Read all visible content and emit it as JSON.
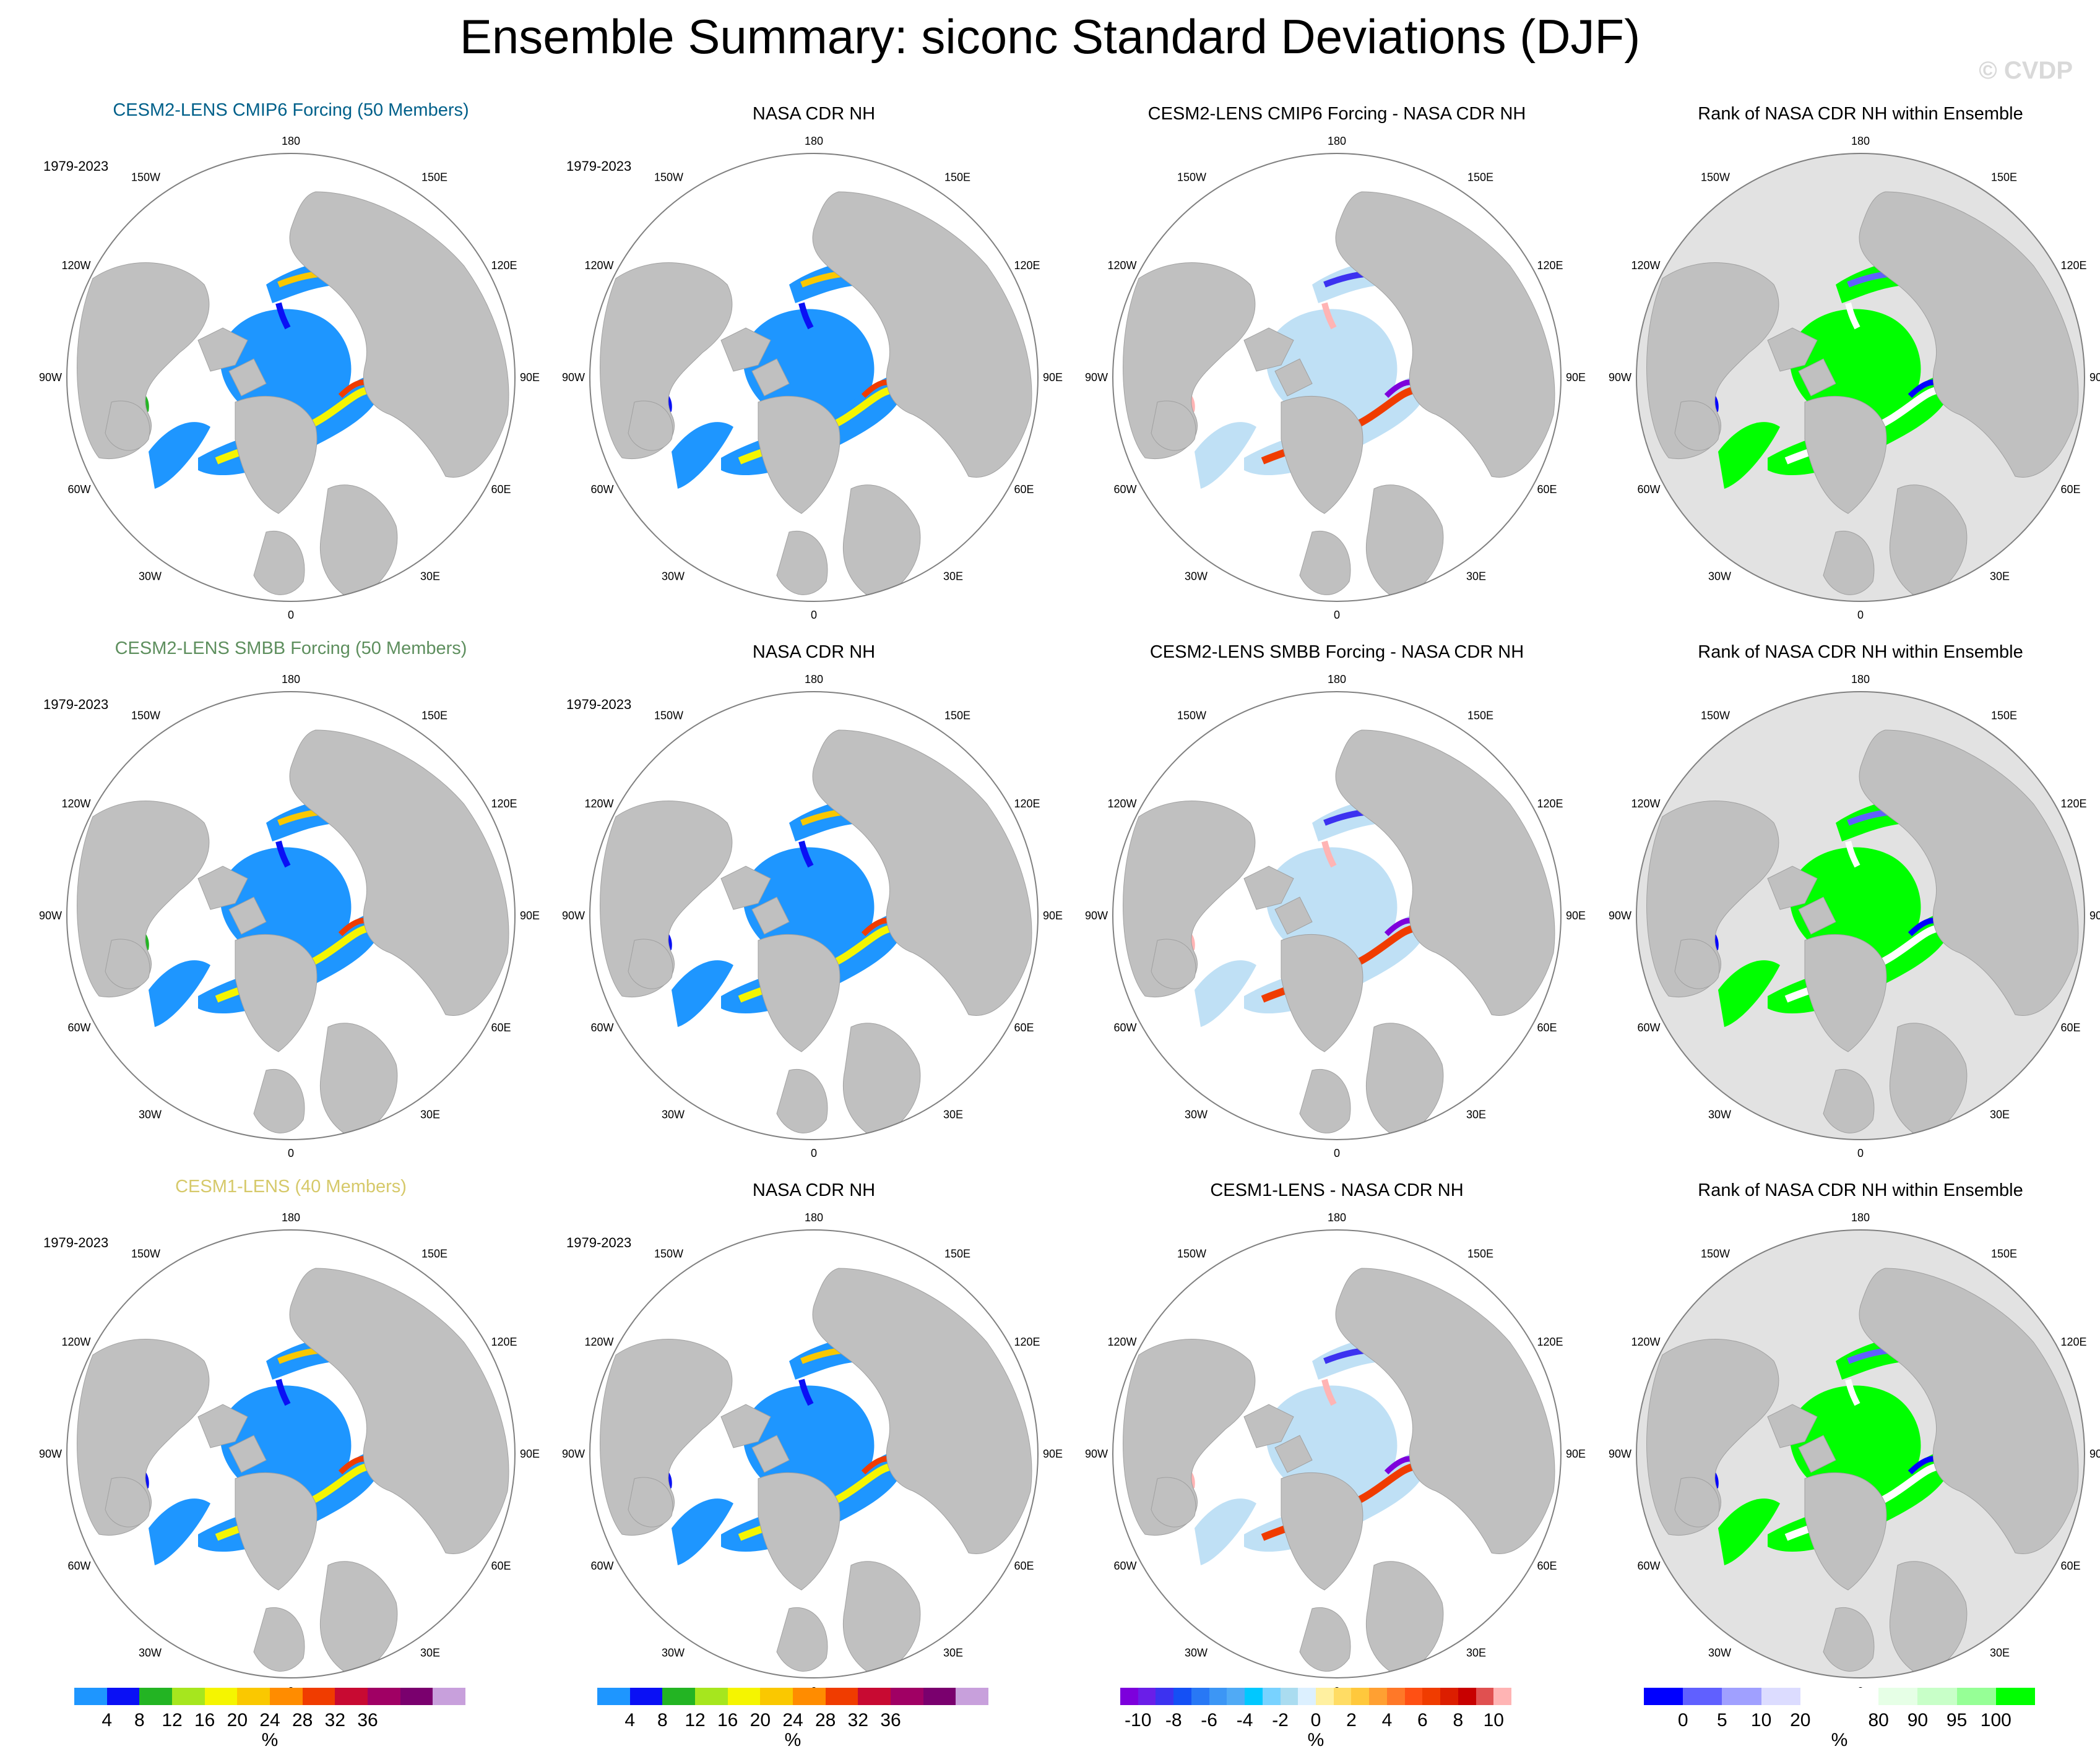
{
  "title": "Ensemble Summary: siconc Standard Deviations (DJF)",
  "watermark": "© CVDP",
  "period": "1979-2023",
  "lon_labels": {
    "top": "180",
    "bottom": "0",
    "l1": "150W",
    "l2": "120W",
    "l3": "90W",
    "l4": "60W",
    "l5": "30W",
    "r1": "150E",
    "r2": "120E",
    "r3": "90E",
    "r4": "60E",
    "r5": "30E"
  },
  "rows": [
    {
      "col1_title": "CESM2-LENS CMIP6 Forcing (50 Members)",
      "col1_title_color": "#00608a",
      "col2_title": "NASA CDR NH",
      "col3_title": "CESM2-LENS CMIP6 Forcing - NASA CDR NH",
      "col4_title": "Rank of NASA CDR NH within Ensemble"
    },
    {
      "col1_title": "CESM2-LENS SMBB Forcing (50 Members)",
      "col1_title_color": "#5e8f5e",
      "col2_title": "NASA CDR NH",
      "col3_title": "CESM2-LENS SMBB Forcing - NASA CDR NH",
      "col4_title": "Rank of NASA CDR NH within Ensemble"
    },
    {
      "col1_title": "CESM1-LENS (40 Members)",
      "col1_title_color": "#d6c96a",
      "col2_title": "NASA CDR NH",
      "col3_title": "CESM1-LENS - NASA CDR NH",
      "col4_title": "Rank of NASA CDR NH within Ensemble"
    }
  ],
  "colorbars": {
    "stddev": {
      "colors": [
        "#1e96ff",
        "#0a10f5",
        "#23b423",
        "#a6e61e",
        "#f5f500",
        "#fac800",
        "#ff8c00",
        "#f03c00",
        "#c80a32",
        "#a00064",
        "#7a006e",
        "#c8a0dc"
      ],
      "ticks": [
        "4",
        "8",
        "12",
        "16",
        "20",
        "24",
        "28",
        "32",
        "36"
      ],
      "unit": "%"
    },
    "diff": {
      "colors": [
        "#7d00dc",
        "#6a1ee8",
        "#3c32f0",
        "#1450f5",
        "#2878f5",
        "#3c96f5",
        "#50aaf5",
        "#00c8ff",
        "#78d2ff",
        "#aadcf0",
        "#dcf0ff",
        "#fff0a0",
        "#ffdc64",
        "#ffc83c",
        "#ffa032",
        "#ff7828",
        "#ff5014",
        "#f03c00",
        "#dc1e00",
        "#c80000",
        "#e05050",
        "#ffb4b4"
      ],
      "ticks": [
        "-10",
        "-8",
        "-6",
        "-4",
        "-2",
        "0",
        "2",
        "4",
        "6",
        "8",
        "10"
      ],
      "unit": "%"
    },
    "rank": {
      "colors": [
        "#0000ff",
        "#6060ff",
        "#a0a0ff",
        "#dcdcff",
        "#ffffff",
        "#ffffff",
        "#e6ffe6",
        "#c8ffc8",
        "#96ff96",
        "#00ff00"
      ],
      "ticks": [
        "0",
        "5",
        "10",
        "20",
        "80",
        "90",
        "95",
        "100"
      ],
      "unit": "%"
    }
  },
  "map_colors": {
    "land": "#c0c0c0",
    "rank_background": "#e2e2e2",
    "ocean": "#ffffff",
    "ice_base_std": "#1e96ff",
    "ice_base_diff": "#bfe0f5",
    "ice_base_rank": "#00ff00"
  }
}
